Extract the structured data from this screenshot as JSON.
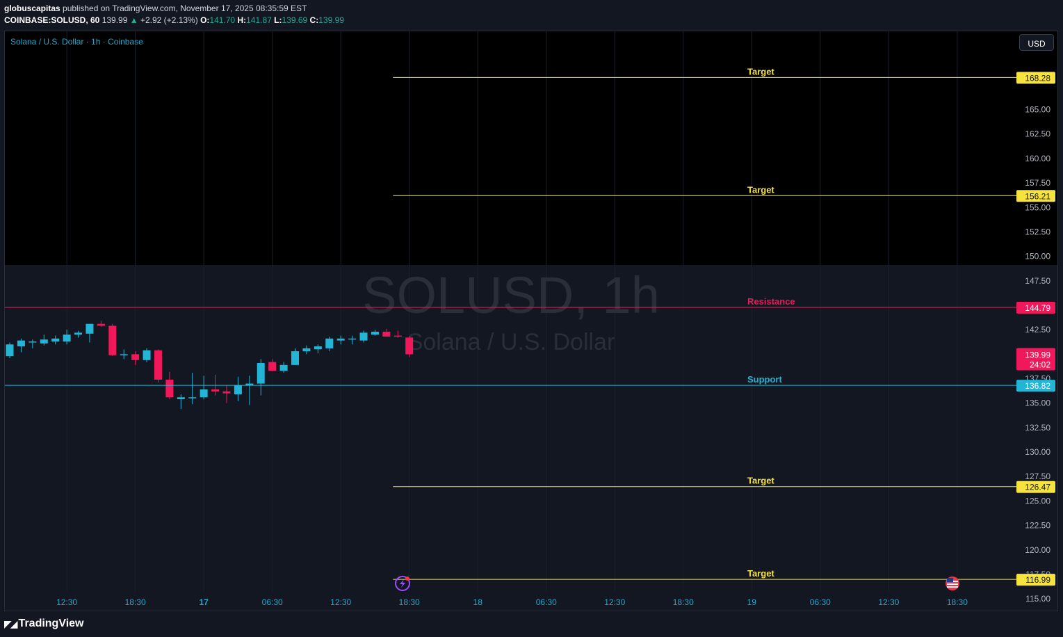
{
  "header": {
    "author": "globuscapitas",
    "published_text": "published on TradingView.com, November 17, 2025 08:35:59 EST",
    "symbol": "COINBASE:SOLUSD, 60",
    "last": "139.99",
    "change_arrow": "▲",
    "change": "+2.92 (+2.13%)",
    "open_label": "O:",
    "open": "141.70",
    "high_label": "H:",
    "high": "141.87",
    "low_label": "L:",
    "low": "139.69",
    "close_label": "C:",
    "close": "139.99"
  },
  "chart": {
    "symbol_title": "Solana / U.S. Dollar · 1h · Coinbase",
    "currency": "USD",
    "watermark_symbol": "SOLUSD, 1h",
    "watermark_name": "Solana / U.S. Dollar",
    "countdown": "24:02"
  },
  "footer": {
    "brand": "TradingView"
  },
  "colors": {
    "background": "#131722",
    "up": "#22b5d6",
    "down": "#f0185a",
    "target": "#f7e33e",
    "resistance": "#f0185a",
    "support": "#22b5d6"
  },
  "chart_data": {
    "type": "candlestick",
    "ylim": [
      113.8,
      173.0
    ],
    "y_ticks": [
      "165.00",
      "162.50",
      "160.00",
      "157.50",
      "155.00",
      "152.50",
      "150.00",
      "147.50",
      "142.50",
      "137.50",
      "135.00",
      "132.50",
      "130.00",
      "127.50",
      "125.00",
      "122.50",
      "120.00",
      "117.50",
      "115.00"
    ],
    "x_ticks": [
      {
        "label": "12:30",
        "bar": 5
      },
      {
        "label": "18:30",
        "bar": 11
      },
      {
        "label": "17",
        "bar": 17,
        "bold": true
      },
      {
        "label": "06:30",
        "bar": 23
      },
      {
        "label": "12:30",
        "bar": 29
      },
      {
        "label": "18:30",
        "bar": 35
      },
      {
        "label": "18",
        "bar": 41
      },
      {
        "label": "06:30",
        "bar": 47
      },
      {
        "label": "12:30",
        "bar": 53
      },
      {
        "label": "18:30",
        "bar": 59
      },
      {
        "label": "19",
        "bar": 65
      },
      {
        "label": "06:30",
        "bar": 71
      },
      {
        "label": "12:30",
        "bar": 77
      },
      {
        "label": "18:30",
        "bar": 83
      }
    ],
    "levels": [
      {
        "label": "Target",
        "value": 168.28,
        "price_label": "168.28",
        "kind": "target",
        "from_bar": 34
      },
      {
        "label": "Target",
        "value": 156.21,
        "price_label": "156.21",
        "kind": "target",
        "from_bar": 34
      },
      {
        "label": "Resistance",
        "value": 144.79,
        "price_label": "144.79",
        "kind": "resistance",
        "from_bar": -1
      },
      {
        "label": "Support",
        "value": 136.82,
        "price_label": "136.82",
        "kind": "support",
        "from_bar": -1
      },
      {
        "label": "Target",
        "value": 126.47,
        "price_label": "126.47",
        "kind": "target",
        "from_bar": 34
      },
      {
        "label": "Target",
        "value": 116.99,
        "price_label": "116.99",
        "kind": "target",
        "from_bar": 34
      }
    ],
    "last_price": 139.99,
    "last_price_label": "139.99",
    "candles": [
      {
        "o": 139.8,
        "h": 141.2,
        "l": 139.6,
        "c": 141.0
      },
      {
        "o": 140.8,
        "h": 141.6,
        "l": 140.2,
        "c": 141.4
      },
      {
        "o": 141.2,
        "h": 141.5,
        "l": 140.6,
        "c": 141.3
      },
      {
        "o": 141.1,
        "h": 142.0,
        "l": 140.9,
        "c": 141.5
      },
      {
        "o": 141.3,
        "h": 141.9,
        "l": 141.0,
        "c": 141.6
      },
      {
        "o": 141.3,
        "h": 142.5,
        "l": 141.0,
        "c": 142.0
      },
      {
        "o": 142.0,
        "h": 142.4,
        "l": 141.7,
        "c": 142.2
      },
      {
        "o": 142.1,
        "h": 143.1,
        "l": 141.2,
        "c": 143.1
      },
      {
        "o": 143.1,
        "h": 143.4,
        "l": 142.8,
        "c": 142.9
      },
      {
        "o": 142.9,
        "h": 143.1,
        "l": 139.8,
        "c": 139.9
      },
      {
        "o": 139.9,
        "h": 140.5,
        "l": 139.5,
        "c": 140.0
      },
      {
        "o": 140.0,
        "h": 140.3,
        "l": 138.9,
        "c": 139.4
      },
      {
        "o": 139.4,
        "h": 140.6,
        "l": 139.2,
        "c": 140.4
      },
      {
        "o": 140.4,
        "h": 140.5,
        "l": 137.1,
        "c": 137.4
      },
      {
        "o": 137.4,
        "h": 138.2,
        "l": 135.4,
        "c": 135.6
      },
      {
        "o": 135.4,
        "h": 135.9,
        "l": 134.4,
        "c": 135.6
      },
      {
        "o": 135.6,
        "h": 138.1,
        "l": 134.9,
        "c": 135.6
      },
      {
        "o": 135.6,
        "h": 137.8,
        "l": 135.4,
        "c": 136.4
      },
      {
        "o": 136.4,
        "h": 137.9,
        "l": 135.8,
        "c": 136.2
      },
      {
        "o": 136.2,
        "h": 136.8,
        "l": 135.0,
        "c": 136.0
      },
      {
        "o": 135.9,
        "h": 137.7,
        "l": 135.2,
        "c": 136.8
      },
      {
        "o": 136.8,
        "h": 137.8,
        "l": 134.8,
        "c": 137.0
      },
      {
        "o": 137.0,
        "h": 139.5,
        "l": 135.8,
        "c": 139.1
      },
      {
        "o": 139.2,
        "h": 139.5,
        "l": 138.3,
        "c": 138.3
      },
      {
        "o": 138.3,
        "h": 139.2,
        "l": 138.1,
        "c": 138.9
      },
      {
        "o": 138.9,
        "h": 140.6,
        "l": 138.9,
        "c": 140.3
      },
      {
        "o": 140.3,
        "h": 140.9,
        "l": 140.0,
        "c": 140.6
      },
      {
        "o": 140.5,
        "h": 141.0,
        "l": 140.1,
        "c": 140.8
      },
      {
        "o": 140.6,
        "h": 141.8,
        "l": 140.3,
        "c": 141.6
      },
      {
        "o": 141.4,
        "h": 141.9,
        "l": 141.0,
        "c": 141.6
      },
      {
        "o": 141.5,
        "h": 141.9,
        "l": 141.0,
        "c": 141.6
      },
      {
        "o": 141.4,
        "h": 142.4,
        "l": 141.2,
        "c": 142.2
      },
      {
        "o": 142.0,
        "h": 142.5,
        "l": 141.9,
        "c": 142.3
      },
      {
        "o": 142.3,
        "h": 142.6,
        "l": 141.8,
        "c": 141.8
      },
      {
        "o": 141.9,
        "h": 142.4,
        "l": 141.7,
        "c": 141.8
      },
      {
        "o": 141.7,
        "h": 141.87,
        "l": 139.69,
        "c": 139.99
      }
    ]
  }
}
